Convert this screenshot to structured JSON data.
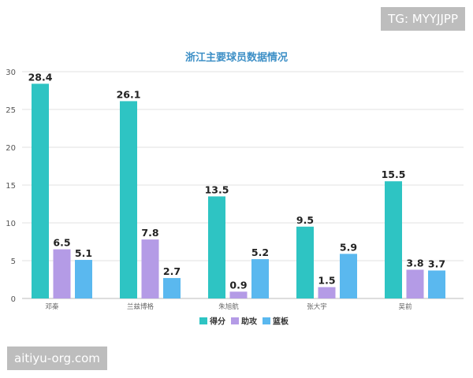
{
  "watermarks": {
    "top_right": "TG: MYYJJPP",
    "bottom_left": "aitiyu-org.com"
  },
  "colors": {
    "title": "#3d8fc6",
    "series": [
      "#2ec4c3",
      "#b49be6",
      "#5ab8ef"
    ],
    "axis": "#555555",
    "grid": "#e2e2e2"
  },
  "chart_data": {
    "type": "bar",
    "title": "浙江主要球员数据情况",
    "categories": [
      "邓秦",
      "兰兹博格",
      "朱旭航",
      "张大宇",
      "吴前"
    ],
    "series": [
      {
        "name": "得分",
        "values": [
          28.4,
          26.1,
          13.5,
          9.5,
          15.5
        ]
      },
      {
        "name": "助攻",
        "values": [
          6.5,
          7.8,
          0.9,
          1.5,
          3.8
        ]
      },
      {
        "name": "篮板",
        "values": [
          5.1,
          2.7,
          5.2,
          5.9,
          3.7
        ]
      }
    ],
    "ylim": [
      0,
      30
    ],
    "yticks": [
      0,
      5,
      10,
      15,
      20,
      25,
      30
    ],
    "grid": "horizontal",
    "legend": "bottom-center",
    "data_labels": true
  }
}
